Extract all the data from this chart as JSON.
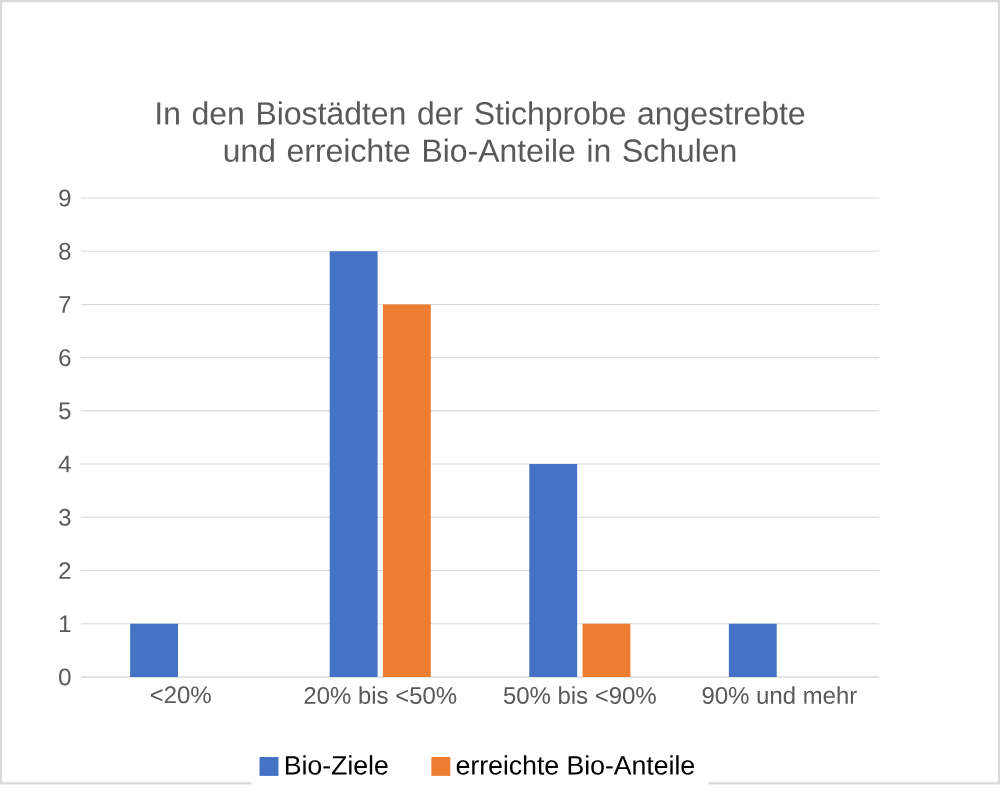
{
  "chart_data": {
    "type": "bar",
    "title": "In den Biostädten der Stichprobe angestrebte und erreichte Bio-Anteile in Schulen",
    "categories": [
      "<20%",
      "20% bis <50%",
      "50% bis <90%",
      "90% und mehr"
    ],
    "series": [
      {
        "name": "Bio-Ziele",
        "color": "#4472c4",
        "values": [
          1,
          8,
          4,
          1
        ]
      },
      {
        "name": "erreichte Bio-Anteile",
        "color": "#ed7d31",
        "values": [
          0,
          7,
          1,
          0
        ]
      }
    ],
    "ylim": [
      0,
      9
    ],
    "yticks": [
      0,
      1,
      2,
      3,
      4,
      5,
      6,
      7,
      8,
      9
    ],
    "grid": "y",
    "legend": "bottom"
  }
}
